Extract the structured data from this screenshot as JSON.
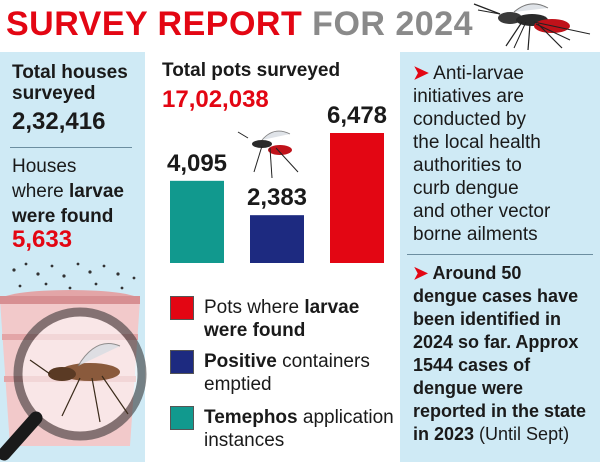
{
  "title": {
    "part1": "SURVEY REPORT",
    "part2": "FOR 2024"
  },
  "colors": {
    "red": "#e30613",
    "navy": "#1d2a80",
    "teal": "#11998e",
    "panel": "#cfeaf5"
  },
  "left": {
    "houses_label_1": "Total houses",
    "houses_label_2": "surveyed",
    "houses_value": "2,32,416",
    "larvae_label_1": "Houses",
    "larvae_label_2a": "where ",
    "larvae_label_2b": "larvae",
    "larvae_label_3": "were found",
    "larvae_value": "5,633"
  },
  "middle": {
    "pots_label": "Total pots surveyed",
    "pots_value": "17,02,038"
  },
  "chart_data": {
    "type": "bar",
    "categories": [
      "Temephos application instances",
      "Positive containers emptied",
      "Pots where larvae were found"
    ],
    "values": [
      4095,
      2383,
      6478
    ],
    "value_labels": [
      "4,095",
      "2,383",
      "6,478"
    ],
    "colors": [
      "#11998e",
      "#1d2a80",
      "#e30613"
    ],
    "ylim": [
      0,
      6478
    ]
  },
  "legend": [
    {
      "pre": "Pots where ",
      "bold": "larvae",
      "line2bold": "were found",
      "color": "#e30613"
    },
    {
      "bold": "Positive",
      "post": " containers",
      "line2": "emptied",
      "color": "#1d2a80"
    },
    {
      "bold": "Temephos",
      "post": " application",
      "line2": "instances",
      "color": "#11998e"
    }
  ],
  "right": {
    "arrow": "➤",
    "para1": [
      "Anti-larvae",
      "initiatives are",
      "conducted by",
      "the local health",
      "authorities to",
      "curb dengue",
      "and other vector",
      "borne ailments"
    ],
    "para2_bold": [
      "Around 50",
      "dengue cases have",
      "been identified in",
      "2024 so far. Approx",
      "1544 cases of",
      "dengue were",
      "reported in the state"
    ],
    "para2_last_bold": "in 2023",
    "para2_last_normal": " (Until Sept)"
  }
}
